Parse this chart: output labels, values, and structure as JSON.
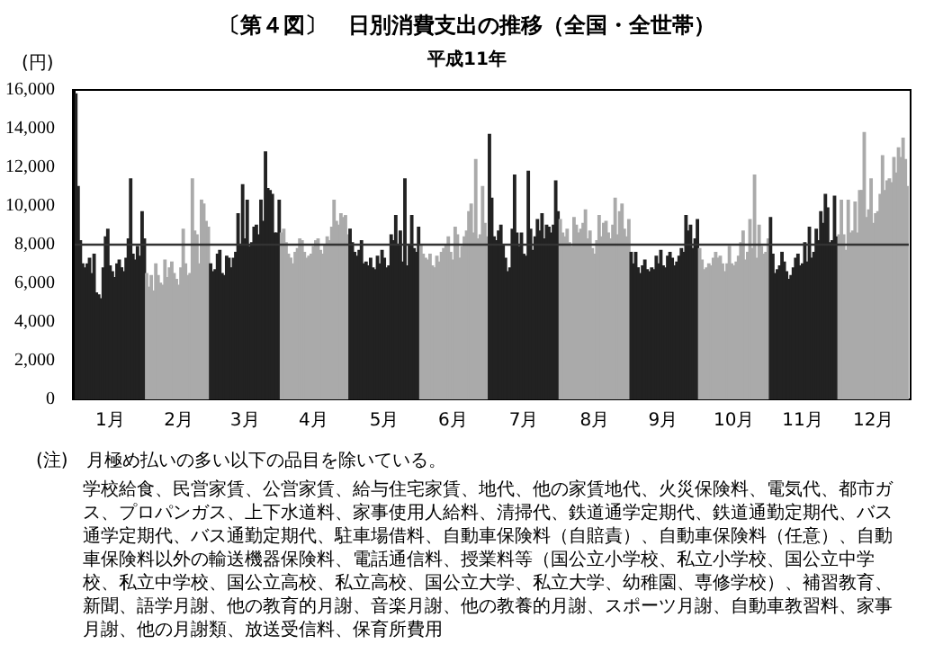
{
  "chart_data": {
    "type": "bar",
    "title": "〔第４図〕　日別消費支出の推移（全国・全世帯）",
    "subtitle": "平成11年",
    "ylabel": "(円)",
    "ylim": [
      0,
      16000
    ],
    "yticks": [
      0,
      {
        "value": 2000,
        "label": "2,000"
      },
      {
        "value": 4000,
        "label": "4,000"
      },
      {
        "value": 6000,
        "label": "6,000"
      },
      {
        "value": 8000,
        "label": "8,000"
      },
      {
        "value": 10000,
        "label": "10,000"
      },
      {
        "value": 12000,
        "label": "12,000"
      },
      {
        "value": 14000,
        "label": "14,000"
      },
      {
        "value": 16000,
        "label": "16,000"
      }
    ],
    "ref_lines": [
      {
        "axis": "y",
        "value": 8000,
        "color": "#333333"
      }
    ],
    "annotations": [
      "(注)　月極め払いの多い以下の品目を除いている。",
      "学校給食、民営家賃、公営家賃、給与住宅家賃、地代、他の家賃地代、火災保険料、電気代、都市ガス、プロパンガス、上下水道料、家事使用人給料、清掃代、鉄道通学定期代、鉄道通勤定期代、バス通学定期代、バス通勤定期代、駐車場借料、自動車保険料（自賠責）、自動車保険料（任意）、自動車保険料以外の輸送機器保険料、電話通信料、授業料等（国公立小学校、私立小学校、国公立中学校、私立中学校、国公立高校、私立高校、国公立大学、私立大学、幼稚園、専修学校）、補習教育、新聞、語学月謝、他の教育的月謝、音楽月謝、他の教養的月謝、スポーツ月謝、自動車教習料、家事月謝、他の月謝類、放送受信料、保育所費用"
    ],
    "categories": [
      null,
      null,
      null,
      null,
      null,
      null,
      null,
      null,
      null,
      null,
      null,
      null,
      null,
      null,
      null,
      "1月",
      null,
      null,
      null,
      null,
      null,
      null,
      null,
      null,
      null,
      null,
      null,
      null,
      null,
      null,
      null,
      null,
      null,
      null,
      null,
      null,
      null,
      null,
      null,
      null,
      null,
      null,
      null,
      null,
      null,
      "2月",
      null,
      null,
      null,
      null,
      null,
      null,
      null,
      null,
      null,
      null,
      null,
      null,
      null,
      null,
      null,
      null,
      null,
      null,
      null,
      null,
      null,
      null,
      null,
      null,
      null,
      null,
      null,
      null,
      "3月",
      null,
      null,
      null,
      null,
      null,
      null,
      null,
      null,
      null,
      null,
      null,
      null,
      null,
      null,
      null,
      null,
      null,
      null,
      null,
      null,
      null,
      null,
      null,
      null,
      null,
      null,
      null,
      null,
      null,
      "4月",
      null,
      null,
      null,
      null,
      null,
      null,
      null,
      null,
      null,
      null,
      null,
      null,
      null,
      null,
      null,
      null,
      null,
      null,
      null,
      null,
      null,
      null,
      null,
      null,
      null,
      null,
      null,
      null,
      null,
      null,
      "5月",
      null,
      null,
      null,
      null,
      null,
      null,
      null,
      null,
      null,
      null,
      null,
      null,
      null,
      null,
      null,
      null,
      null,
      null,
      null,
      null,
      null,
      null,
      null,
      null,
      null,
      null,
      null,
      null,
      null,
      "6月",
      null,
      null,
      null,
      null,
      null,
      null,
      null,
      null,
      null,
      null,
      null,
      null,
      null,
      null,
      null,
      null,
      null,
      null,
      null,
      null,
      null,
      null,
      null,
      null,
      null,
      null,
      null,
      null,
      null,
      null,
      "7月",
      null,
      null,
      null,
      null,
      null,
      null,
      null,
      null,
      null,
      null,
      null,
      null,
      null,
      null,
      null,
      null,
      null,
      null,
      null,
      null,
      null,
      null,
      null,
      null,
      null,
      null,
      null,
      null,
      null,
      null,
      "8月",
      null,
      null,
      null,
      null,
      null,
      null,
      null,
      null,
      null,
      null,
      null,
      null,
      null,
      null,
      null,
      null,
      null,
      null,
      null,
      null,
      null,
      null,
      null,
      null,
      null,
      null,
      null,
      null,
      null,
      "9月",
      null,
      null,
      null,
      null,
      null,
      null,
      null,
      null,
      null,
      null,
      null,
      null,
      null,
      null,
      null,
      null,
      null,
      null,
      null,
      null,
      null,
      null,
      null,
      null,
      null,
      null,
      null,
      null,
      null,
      null,
      "10月",
      null,
      null,
      null,
      null,
      null,
      null,
      null,
      null,
      null,
      null,
      null,
      null,
      null,
      null,
      null,
      null,
      null,
      null,
      null,
      null,
      null,
      null,
      null,
      null,
      null,
      null,
      null,
      null,
      null,
      "11月",
      null,
      null,
      null,
      null,
      null,
      null,
      null,
      null,
      null,
      null,
      null,
      null,
      null,
      null,
      null,
      null,
      null,
      null,
      null,
      null,
      null,
      null,
      null,
      null,
      null,
      null,
      null,
      null,
      null,
      null,
      "12月",
      null,
      null,
      null,
      null,
      null,
      null,
      null,
      null,
      null,
      null,
      null,
      null,
      null,
      null,
      null
    ],
    "values": [
      15800,
      11000,
      8200,
      7000,
      6800,
      7000,
      7300,
      6500,
      7500,
      5500,
      5400,
      5200,
      6800,
      8400,
      8800,
      6900,
      6600,
      6300,
      7000,
      7200,
      6800,
      6600,
      7300,
      8300,
      11400,
      7500,
      7200,
      7900,
      7400,
      9700,
      8300,
      6500,
      5800,
      6400,
      5600,
      7000,
      6400,
      6000,
      5900,
      7200,
      6300,
      6800,
      7100,
      6500,
      6200,
      5900,
      6800,
      8800,
      7000,
      6400,
      6500,
      11400,
      8700,
      8500,
      7000,
      10300,
      10100,
      9200,
      8900,
      7000,
      6600,
      6700,
      7500,
      7700,
      6500,
      6400,
      7400,
      7300,
      6800,
      7300,
      7600,
      9600,
      8000,
      11100,
      8300,
      10300,
      7900,
      8100,
      8900,
      9000,
      8500,
      10300,
      9200,
      12800,
      10900,
      10800,
      10600,
      8600,
      8600,
      10300,
      8600,
      8800,
      8100,
      7500,
      7300,
      7000,
      7600,
      7800,
      8300,
      8200,
      7600,
      7300,
      7400,
      7500,
      7900,
      8200,
      8300,
      7700,
      7500,
      8000,
      8400,
      8200,
      8900,
      10300,
      9200,
      9000,
      9600,
      9400,
      9500,
      8500,
      8800,
      8100,
      7600,
      7400,
      7700,
      8200,
      7000,
      7100,
      6900,
      7300,
      6800,
      6700,
      7400,
      7000,
      7700,
      7300,
      6800,
      6900,
      8500,
      8200,
      9500,
      8000,
      8700,
      7100,
      11400,
      6900,
      8000,
      9500,
      7800,
      7600,
      8900,
      8000,
      7500,
      7300,
      7200,
      7500,
      6900,
      6800,
      7400,
      7100,
      7600,
      7800,
      8000,
      8400,
      7600,
      7200,
      8900,
      8500,
      7300,
      7900,
      8400,
      8700,
      9700,
      10100,
      8600,
      12400,
      8300,
      8500,
      11000,
      9100,
      8400,
      13700,
      10400,
      8400,
      8200,
      8700,
      9000,
      8000,
      7300,
      6600,
      6800,
      8800,
      11600,
      8600,
      7900,
      8600,
      7500,
      7400,
      11800,
      8800,
      7700,
      8400,
      9300,
      8700,
      9600,
      8300,
      9000,
      8900,
      8600,
      9000,
      11300,
      9700,
      9300,
      8600,
      8400,
      8800,
      8100,
      7900,
      9400,
      9000,
      8600,
      8800,
      9100,
      9800,
      8300,
      8700,
      7800,
      7500,
      8200,
      9500,
      8400,
      9100,
      9200,
      8600,
      8300,
      9000,
      10400,
      8500,
      9700,
      10100,
      8800,
      8400,
      9300,
      7600,
      7000,
      7600,
      6800,
      6500,
      6900,
      7200,
      6700,
      6600,
      6800,
      6700,
      7400,
      7000,
      7700,
      6900,
      6800,
      7400,
      7600,
      7300,
      6900,
      7100,
      7400,
      7800,
      7600,
      9500,
      8700,
      9000,
      7800,
      8300,
      9300,
      7800,
      7200,
      6700,
      6800,
      7000,
      6900,
      7300,
      7600,
      7300,
      7400,
      7000,
      6600,
      7000,
      7900,
      7000,
      6900,
      7100,
      7400,
      8100,
      8700,
      7200,
      7600,
      9300,
      7800,
      11600,
      7300,
      9000,
      7900,
      7500,
      7600,
      8300,
      9400,
      7500,
      6500,
      6700,
      6900,
      7600,
      7100,
      6600,
      6200,
      6400,
      6800,
      7300,
      7500,
      6900,
      7000,
      8100,
      7100,
      8900,
      7300,
      7600,
      8800,
      8200,
      9700,
      9100,
      10600,
      9900,
      8100,
      8200,
      10500,
      8400,
      8500,
      10300,
      8500,
      7700,
      10300,
      8600,
      8700,
      10200,
      8600,
      10800,
      10800,
      13800,
      9400,
      9800,
      11400,
      9100,
      9600,
      9700,
      10600,
      12600,
      10800,
      11300,
      11400,
      11200,
      12500,
      11700,
      13000,
      12500,
      13500,
      12400,
      11000
    ],
    "colors": [
      "#222222",
      "#222222",
      "#222222",
      "#222222",
      "#222222",
      "#222222",
      "#222222",
      "#222222",
      "#222222",
      "#222222",
      "#222222",
      "#222222",
      "#222222",
      "#222222",
      "#222222",
      "#222222",
      "#222222",
      "#222222",
      "#222222",
      "#222222",
      "#222222",
      "#222222",
      "#222222",
      "#222222",
      "#222222",
      "#222222",
      "#222222",
      "#222222",
      "#222222",
      "#222222",
      "#222222",
      "#aaaaaa",
      "#aaaaaa",
      "#aaaaaa",
      "#aaaaaa",
      "#aaaaaa",
      "#aaaaaa",
      "#aaaaaa",
      "#aaaaaa",
      "#aaaaaa",
      "#aaaaaa",
      "#aaaaaa",
      "#aaaaaa",
      "#aaaaaa",
      "#aaaaaa",
      "#aaaaaa",
      "#aaaaaa",
      "#aaaaaa",
      "#aaaaaa",
      "#aaaaaa",
      "#aaaaaa",
      "#aaaaaa",
      "#aaaaaa",
      "#aaaaaa",
      "#aaaaaa",
      "#aaaaaa",
      "#aaaaaa",
      "#aaaaaa",
      "#aaaaaa",
      "#222222",
      "#222222",
      "#222222",
      "#222222",
      "#222222",
      "#222222",
      "#222222",
      "#222222",
      "#222222",
      "#222222",
      "#222222",
      "#222222",
      "#222222",
      "#222222",
      "#222222",
      "#222222",
      "#222222",
      "#222222",
      "#222222",
      "#222222",
      "#222222",
      "#222222",
      "#222222",
      "#222222",
      "#222222",
      "#222222",
      "#222222",
      "#222222",
      "#222222",
      "#222222",
      "#222222",
      "#aaaaaa",
      "#aaaaaa",
      "#aaaaaa",
      "#aaaaaa",
      "#aaaaaa",
      "#aaaaaa",
      "#aaaaaa",
      "#aaaaaa",
      "#aaaaaa",
      "#aaaaaa",
      "#aaaaaa",
      "#aaaaaa",
      "#aaaaaa",
      "#aaaaaa",
      "#aaaaaa",
      "#aaaaaa",
      "#aaaaaa",
      "#aaaaaa",
      "#aaaaaa",
      "#aaaaaa",
      "#aaaaaa",
      "#aaaaaa",
      "#aaaaaa",
      "#aaaaaa",
      "#aaaaaa",
      "#aaaaaa",
      "#aaaaaa",
      "#aaaaaa",
      "#aaaaaa",
      "#aaaaaa",
      "#222222",
      "#222222",
      "#222222",
      "#222222",
      "#222222",
      "#222222",
      "#222222",
      "#222222",
      "#222222",
      "#222222",
      "#222222",
      "#222222",
      "#222222",
      "#222222",
      "#222222",
      "#222222",
      "#222222",
      "#222222",
      "#222222",
      "#222222",
      "#222222",
      "#222222",
      "#222222",
      "#222222",
      "#222222",
      "#222222",
      "#222222",
      "#222222",
      "#222222",
      "#222222",
      "#222222",
      "#aaaaaa",
      "#aaaaaa",
      "#aaaaaa",
      "#aaaaaa",
      "#aaaaaa",
      "#aaaaaa",
      "#aaaaaa",
      "#aaaaaa",
      "#aaaaaa",
      "#aaaaaa",
      "#aaaaaa",
      "#aaaaaa",
      "#aaaaaa",
      "#aaaaaa",
      "#aaaaaa",
      "#aaaaaa",
      "#aaaaaa",
      "#aaaaaa",
      "#aaaaaa",
      "#aaaaaa",
      "#aaaaaa",
      "#aaaaaa",
      "#aaaaaa",
      "#aaaaaa",
      "#aaaaaa",
      "#aaaaaa",
      "#aaaaaa",
      "#aaaaaa",
      "#aaaaaa",
      "#aaaaaa",
      "#222222",
      "#222222",
      "#222222",
      "#222222",
      "#222222",
      "#222222",
      "#222222",
      "#222222",
      "#222222",
      "#222222",
      "#222222",
      "#222222",
      "#222222",
      "#222222",
      "#222222",
      "#222222",
      "#222222",
      "#222222",
      "#222222",
      "#222222",
      "#222222",
      "#222222",
      "#222222",
      "#222222",
      "#222222",
      "#222222",
      "#222222",
      "#222222",
      "#222222",
      "#222222",
      "#222222",
      "#aaaaaa",
      "#aaaaaa",
      "#aaaaaa",
      "#aaaaaa",
      "#aaaaaa",
      "#aaaaaa",
      "#aaaaaa",
      "#aaaaaa",
      "#aaaaaa",
      "#aaaaaa",
      "#aaaaaa",
      "#aaaaaa",
      "#aaaaaa",
      "#aaaaaa",
      "#aaaaaa",
      "#aaaaaa",
      "#aaaaaa",
      "#aaaaaa",
      "#aaaaaa",
      "#aaaaaa",
      "#aaaaaa",
      "#aaaaaa",
      "#aaaaaa",
      "#aaaaaa",
      "#aaaaaa",
      "#aaaaaa",
      "#aaaaaa",
      "#aaaaaa",
      "#aaaaaa",
      "#aaaaaa",
      "#aaaaaa",
      "#222222",
      "#222222",
      "#222222",
      "#222222",
      "#222222",
      "#222222",
      "#222222",
      "#222222",
      "#222222",
      "#222222",
      "#222222",
      "#222222",
      "#222222",
      "#222222",
      "#222222",
      "#222222",
      "#222222",
      "#222222",
      "#222222",
      "#222222",
      "#222222",
      "#222222",
      "#222222",
      "#222222",
      "#222222",
      "#222222",
      "#222222",
      "#222222",
      "#222222",
      "#222222",
      "#aaaaaa",
      "#aaaaaa",
      "#aaaaaa",
      "#aaaaaa",
      "#aaaaaa",
      "#aaaaaa",
      "#aaaaaa",
      "#aaaaaa",
      "#aaaaaa",
      "#aaaaaa",
      "#aaaaaa",
      "#aaaaaa",
      "#aaaaaa",
      "#aaaaaa",
      "#aaaaaa",
      "#aaaaaa",
      "#aaaaaa",
      "#aaaaaa",
      "#aaaaaa",
      "#aaaaaa",
      "#aaaaaa",
      "#aaaaaa",
      "#aaaaaa",
      "#aaaaaa",
      "#aaaaaa",
      "#aaaaaa",
      "#aaaaaa",
      "#aaaaaa",
      "#aaaaaa",
      "#aaaaaa",
      "#aaaaaa",
      "#222222",
      "#222222",
      "#222222",
      "#222222",
      "#222222",
      "#222222",
      "#222222",
      "#222222",
      "#222222",
      "#222222",
      "#222222",
      "#222222",
      "#222222",
      "#222222",
      "#222222",
      "#222222",
      "#222222",
      "#222222",
      "#222222",
      "#222222",
      "#222222",
      "#222222",
      "#222222",
      "#222222",
      "#222222",
      "#222222",
      "#222222",
      "#222222",
      "#222222",
      "#222222",
      "#aaaaaa",
      "#aaaaaa",
      "#aaaaaa",
      "#aaaaaa",
      "#aaaaaa",
      "#aaaaaa",
      "#aaaaaa",
      "#aaaaaa",
      "#aaaaaa",
      "#aaaaaa",
      "#aaaaaa",
      "#aaaaaa",
      "#aaaaaa",
      "#aaaaaa",
      "#aaaaaa",
      "#aaaaaa",
      "#aaaaaa",
      "#aaaaaa",
      "#aaaaaa",
      "#aaaaaa",
      "#aaaaaa",
      "#aaaaaa",
      "#aaaaaa",
      "#aaaaaa",
      "#aaaaaa",
      "#aaaaaa",
      "#aaaaaa",
      "#aaaaaa",
      "#aaaaaa",
      "#aaaaaa",
      "#aaaaaa"
    ]
  }
}
